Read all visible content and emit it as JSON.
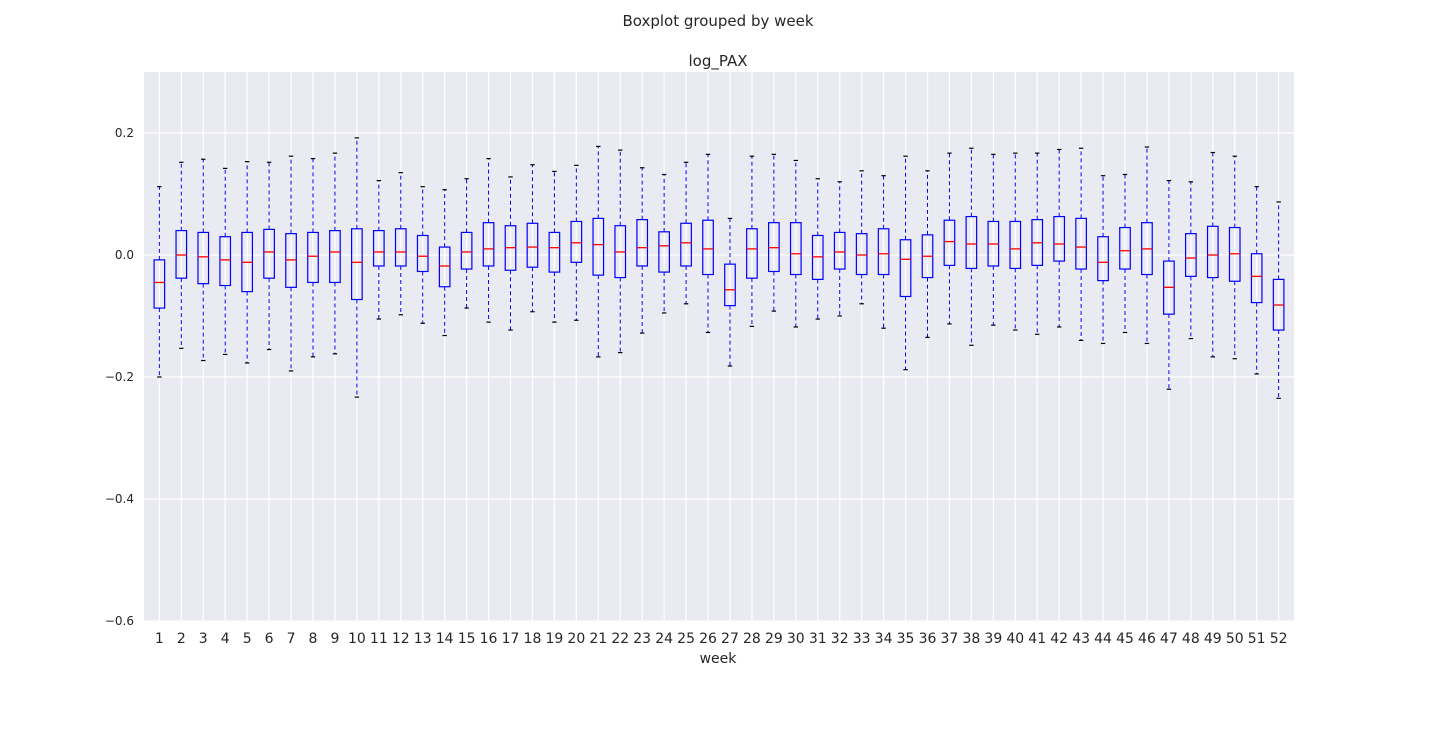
{
  "chart_data": {
    "type": "boxplot",
    "suptitle": "Boxplot grouped by week",
    "title": "log_PAX",
    "xlabel": "week",
    "ylabel": "",
    "ylim": [
      -0.6,
      0.3
    ],
    "yticks": [
      0.2,
      0.0,
      -0.2,
      -0.4,
      -0.6
    ],
    "ytick_labels": [
      "0.2",
      "0.0",
      "−0.2",
      "−0.4",
      "−0.6"
    ],
    "grid": true,
    "background": "#eaeaf2",
    "box_color": "#0000ff",
    "median_color": "#ff0000",
    "whisker_cap_color": "#000000",
    "categories": [
      "1",
      "2",
      "3",
      "4",
      "5",
      "6",
      "7",
      "8",
      "9",
      "10",
      "11",
      "12",
      "13",
      "14",
      "15",
      "16",
      "17",
      "18",
      "19",
      "20",
      "21",
      "22",
      "23",
      "24",
      "25",
      "26",
      "27",
      "28",
      "29",
      "30",
      "31",
      "32",
      "33",
      "34",
      "35",
      "36",
      "37",
      "38",
      "39",
      "40",
      "41",
      "42",
      "43",
      "44",
      "45",
      "46",
      "47",
      "48",
      "49",
      "50",
      "51",
      "52"
    ],
    "boxes": [
      {
        "whislo": -0.2,
        "q1": -0.087,
        "med": -0.045,
        "q3": -0.008,
        "whishi": 0.112
      },
      {
        "whislo": -0.153,
        "q1": -0.038,
        "med": 0.0,
        "q3": 0.04,
        "whishi": 0.152
      },
      {
        "whislo": -0.173,
        "q1": -0.047,
        "med": -0.003,
        "q3": 0.037,
        "whishi": 0.157
      },
      {
        "whislo": -0.163,
        "q1": -0.05,
        "med": -0.008,
        "q3": 0.03,
        "whishi": 0.142
      },
      {
        "whislo": -0.177,
        "q1": -0.06,
        "med": -0.012,
        "q3": 0.037,
        "whishi": 0.153
      },
      {
        "whislo": -0.155,
        "q1": -0.038,
        "med": 0.005,
        "q3": 0.042,
        "whishi": 0.152
      },
      {
        "whislo": -0.19,
        "q1": -0.053,
        "med": -0.008,
        "q3": 0.035,
        "whishi": 0.162
      },
      {
        "whislo": -0.167,
        "q1": -0.045,
        "med": -0.002,
        "q3": 0.037,
        "whishi": 0.158
      },
      {
        "whislo": -0.162,
        "q1": -0.045,
        "med": 0.005,
        "q3": 0.04,
        "whishi": 0.167
      },
      {
        "whislo": -0.233,
        "q1": -0.073,
        "med": -0.012,
        "q3": 0.043,
        "whishi": 0.192
      },
      {
        "whislo": -0.105,
        "q1": -0.018,
        "med": 0.005,
        "q3": 0.04,
        "whishi": 0.122
      },
      {
        "whislo": -0.098,
        "q1": -0.018,
        "med": 0.005,
        "q3": 0.043,
        "whishi": 0.135
      },
      {
        "whislo": -0.112,
        "q1": -0.027,
        "med": -0.002,
        "q3": 0.032,
        "whishi": 0.112
      },
      {
        "whislo": -0.132,
        "q1": -0.052,
        "med": -0.018,
        "q3": 0.013,
        "whishi": 0.107
      },
      {
        "whislo": -0.087,
        "q1": -0.023,
        "med": 0.005,
        "q3": 0.037,
        "whishi": 0.125
      },
      {
        "whislo": -0.11,
        "q1": -0.018,
        "med": 0.01,
        "q3": 0.053,
        "whishi": 0.158
      },
      {
        "whislo": -0.123,
        "q1": -0.025,
        "med": 0.012,
        "q3": 0.048,
        "whishi": 0.128
      },
      {
        "whislo": -0.093,
        "q1": -0.02,
        "med": 0.013,
        "q3": 0.052,
        "whishi": 0.148
      },
      {
        "whislo": -0.11,
        "q1": -0.028,
        "med": 0.012,
        "q3": 0.037,
        "whishi": 0.137
      },
      {
        "whislo": -0.107,
        "q1": -0.012,
        "med": 0.02,
        "q3": 0.055,
        "whishi": 0.147
      },
      {
        "whislo": -0.167,
        "q1": -0.033,
        "med": 0.017,
        "q3": 0.06,
        "whishi": 0.178
      },
      {
        "whislo": -0.16,
        "q1": -0.037,
        "med": 0.005,
        "q3": 0.048,
        "whishi": 0.172
      },
      {
        "whislo": -0.128,
        "q1": -0.018,
        "med": 0.012,
        "q3": 0.058,
        "whishi": 0.143
      },
      {
        "whislo": -0.095,
        "q1": -0.028,
        "med": 0.015,
        "q3": 0.038,
        "whishi": 0.132
      },
      {
        "whislo": -0.08,
        "q1": -0.018,
        "med": 0.02,
        "q3": 0.052,
        "whishi": 0.152
      },
      {
        "whislo": -0.127,
        "q1": -0.032,
        "med": 0.01,
        "q3": 0.057,
        "whishi": 0.165
      },
      {
        "whislo": -0.182,
        "q1": -0.083,
        "med": -0.057,
        "q3": -0.015,
        "whishi": 0.06
      },
      {
        "whislo": -0.117,
        "q1": -0.038,
        "med": 0.01,
        "q3": 0.043,
        "whishi": 0.162
      },
      {
        "whislo": -0.092,
        "q1": -0.027,
        "med": 0.012,
        "q3": 0.053,
        "whishi": 0.165
      },
      {
        "whislo": -0.118,
        "q1": -0.032,
        "med": 0.002,
        "q3": 0.053,
        "whishi": 0.155
      },
      {
        "whislo": -0.105,
        "q1": -0.04,
        "med": -0.003,
        "q3": 0.032,
        "whishi": 0.125
      },
      {
        "whislo": -0.1,
        "q1": -0.023,
        "med": 0.005,
        "q3": 0.037,
        "whishi": 0.12
      },
      {
        "whislo": -0.08,
        "q1": -0.032,
        "med": 0.0,
        "q3": 0.035,
        "whishi": 0.138
      },
      {
        "whislo": -0.12,
        "q1": -0.032,
        "med": 0.002,
        "q3": 0.043,
        "whishi": 0.13
      },
      {
        "whislo": -0.188,
        "q1": -0.068,
        "med": -0.007,
        "q3": 0.025,
        "whishi": 0.162
      },
      {
        "whislo": -0.135,
        "q1": -0.037,
        "med": -0.002,
        "q3": 0.033,
        "whishi": 0.138
      },
      {
        "whislo": -0.113,
        "q1": -0.017,
        "med": 0.022,
        "q3": 0.057,
        "whishi": 0.167
      },
      {
        "whislo": -0.148,
        "q1": -0.022,
        "med": 0.018,
        "q3": 0.063,
        "whishi": 0.175
      },
      {
        "whislo": -0.115,
        "q1": -0.018,
        "med": 0.018,
        "q3": 0.055,
        "whishi": 0.165
      },
      {
        "whislo": -0.123,
        "q1": -0.022,
        "med": 0.01,
        "q3": 0.055,
        "whishi": 0.167
      },
      {
        "whislo": -0.13,
        "q1": -0.017,
        "med": 0.02,
        "q3": 0.058,
        "whishi": 0.167
      },
      {
        "whislo": -0.118,
        "q1": -0.01,
        "med": 0.018,
        "q3": 0.063,
        "whishi": 0.173
      },
      {
        "whislo": -0.14,
        "q1": -0.023,
        "med": 0.013,
        "q3": 0.06,
        "whishi": 0.175
      },
      {
        "whislo": -0.145,
        "q1": -0.042,
        "med": -0.012,
        "q3": 0.03,
        "whishi": 0.13
      },
      {
        "whislo": -0.127,
        "q1": -0.023,
        "med": 0.007,
        "q3": 0.045,
        "whishi": 0.132
      },
      {
        "whislo": -0.145,
        "q1": -0.032,
        "med": 0.01,
        "q3": 0.053,
        "whishi": 0.177
      },
      {
        "whislo": -0.22,
        "q1": -0.097,
        "med": -0.053,
        "q3": -0.01,
        "whishi": 0.122
      },
      {
        "whislo": -0.137,
        "q1": -0.035,
        "med": -0.005,
        "q3": 0.035,
        "whishi": 0.12
      },
      {
        "whislo": -0.167,
        "q1": -0.037,
        "med": 0.0,
        "q3": 0.047,
        "whishi": 0.168
      },
      {
        "whislo": -0.17,
        "q1": -0.043,
        "med": 0.002,
        "q3": 0.045,
        "whishi": 0.162
      },
      {
        "whislo": -0.195,
        "q1": -0.078,
        "med": -0.035,
        "q3": 0.002,
        "whishi": 0.112
      },
      {
        "whislo": -0.235,
        "q1": -0.123,
        "med": -0.082,
        "q3": -0.04,
        "whishi": 0.087
      }
    ]
  }
}
